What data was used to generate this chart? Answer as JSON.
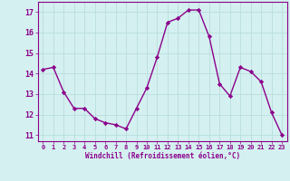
{
  "x": [
    0,
    1,
    2,
    3,
    4,
    5,
    6,
    7,
    8,
    9,
    10,
    11,
    12,
    13,
    14,
    15,
    16,
    17,
    18,
    19,
    20,
    21,
    22,
    23
  ],
  "y": [
    14.2,
    14.3,
    13.1,
    12.3,
    12.3,
    11.8,
    11.6,
    11.5,
    11.3,
    12.3,
    13.3,
    14.8,
    16.5,
    16.7,
    17.1,
    17.1,
    15.8,
    13.5,
    12.9,
    14.3,
    14.1,
    13.6,
    12.1,
    11.0
  ],
  "line_color": "#8b008b",
  "marker": "D",
  "marker_size": 2.2,
  "line_width": 1.0,
  "bg_color": "#d5f0f0",
  "grid_color": "#b8dede",
  "ylabel_ticks": [
    11,
    12,
    13,
    14,
    15,
    16,
    17
  ],
  "xlabel": "Windchill (Refroidissement éolien,°C)",
  "xlim": [
    -0.5,
    23.5
  ],
  "ylim": [
    10.7,
    17.5
  ],
  "tick_color": "#8b008b",
  "label_color": "#8b008b",
  "border_color": "#8b008b",
  "tick_fontsize": 5.0,
  "xlabel_fontsize": 5.5
}
